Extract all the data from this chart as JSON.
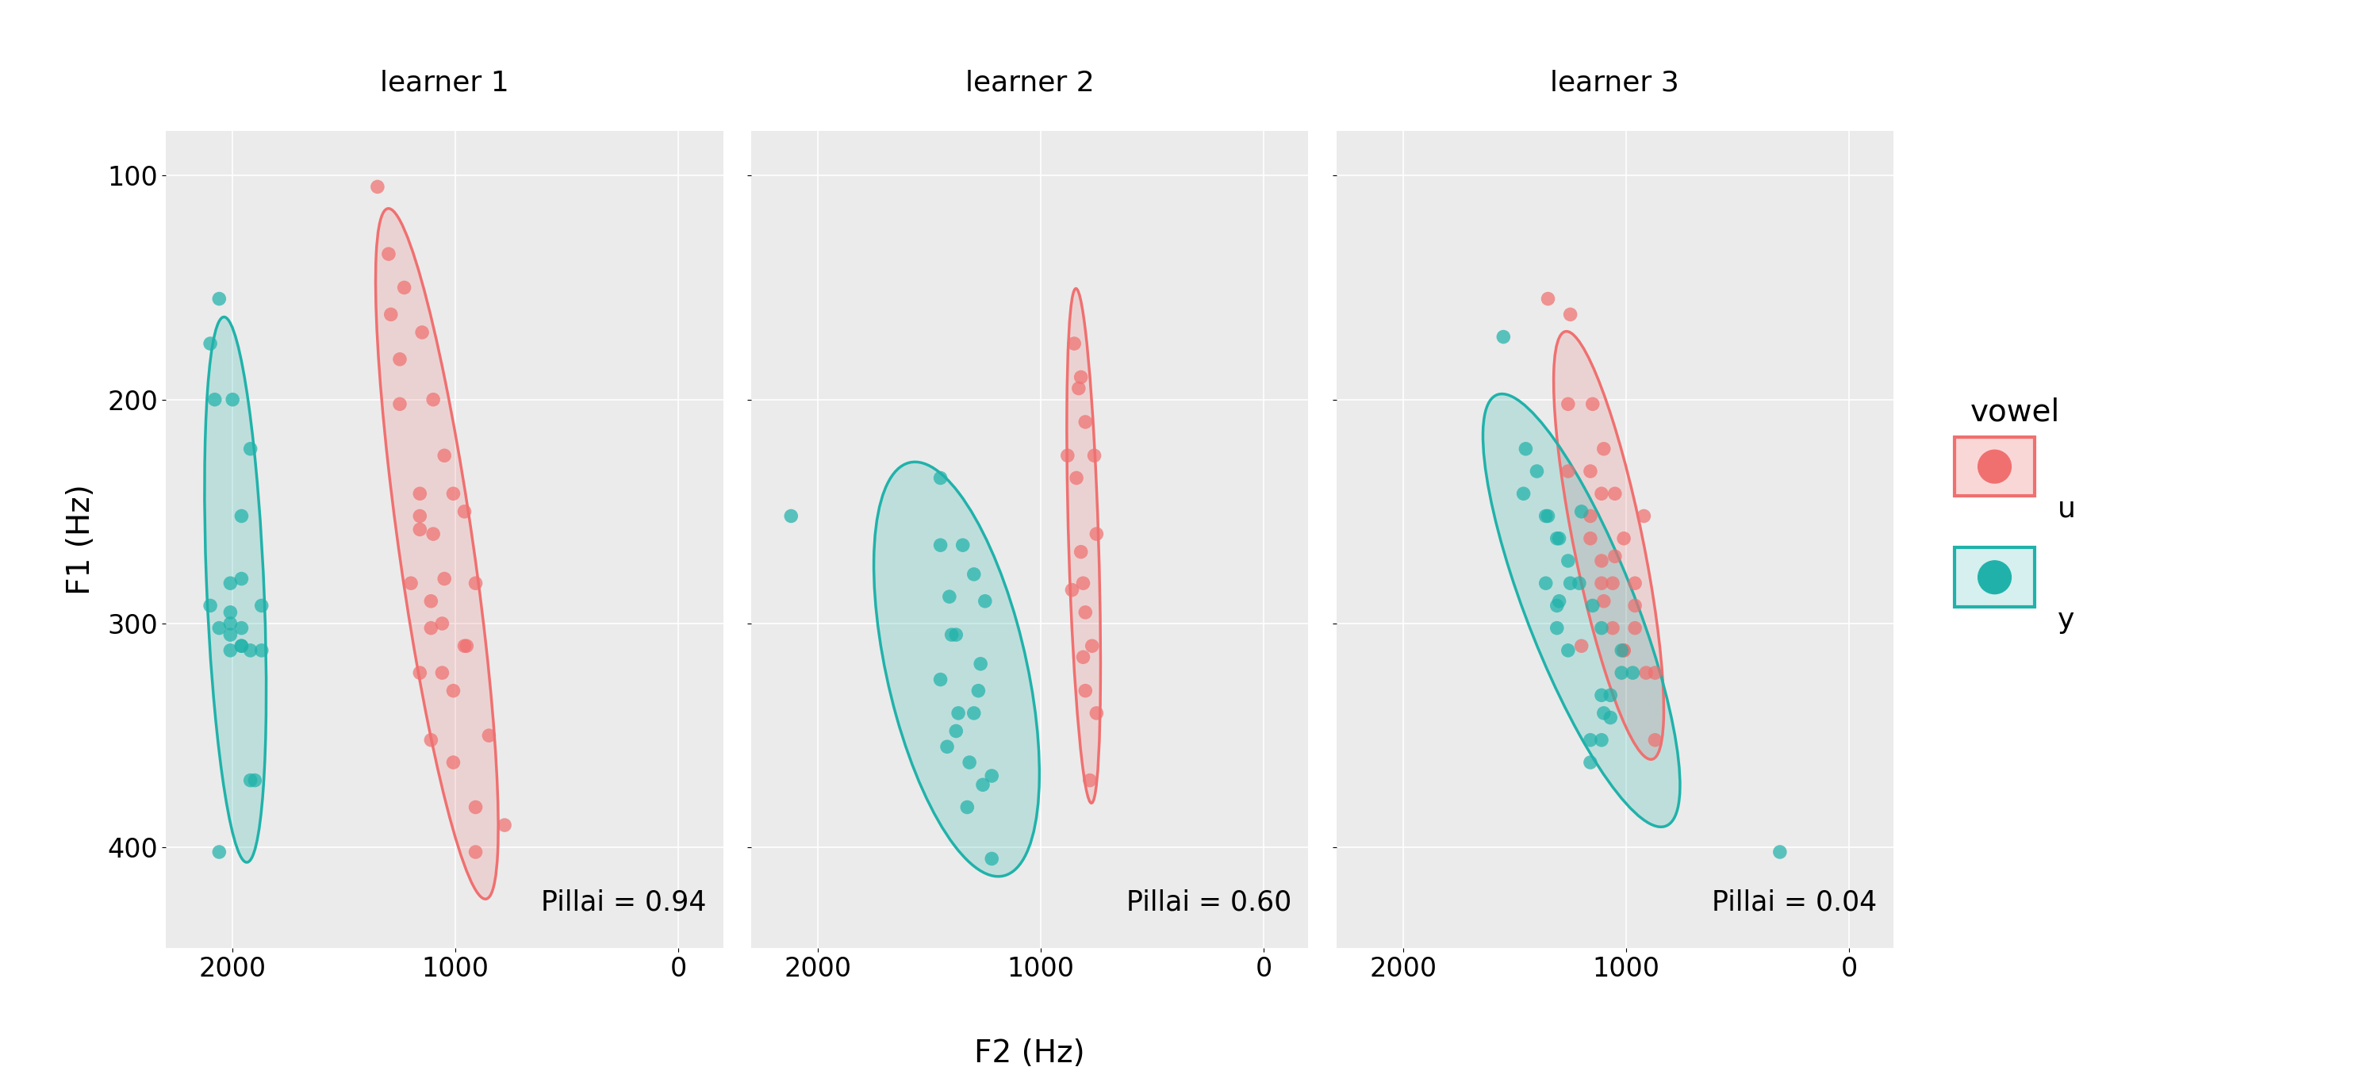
{
  "panels": [
    "learner 1",
    "learner 2",
    "learner 3"
  ],
  "pillai": [
    0.94,
    0.6,
    0.04
  ],
  "color_u": "#F07070",
  "color_y": "#20B2AA",
  "bg_panel": "#EBEBEB",
  "grid_color": "#FFFFFF",
  "header_bg": "#C8C8C8",
  "header_bar": "#333333",
  "xlim": [
    2300,
    -200
  ],
  "ylim": [
    445,
    80
  ],
  "xticks": [
    2000,
    1000,
    0
  ],
  "yticks": [
    100,
    200,
    300,
    400
  ],
  "xlabel": "F2 (Hz)",
  "ylabel": "F1 (Hz)",
  "ellipse_nstd": 2.0,
  "data": {
    "learner 1": {
      "u_f2": [
        1350,
        1230,
        1150,
        1300,
        1100,
        1050,
        960,
        910,
        1010,
        1160,
        1250,
        1110,
        960,
        1060,
        1160,
        1200,
        1010,
        1110,
        910,
        1290,
        1160,
        1060,
        1010,
        1110,
        910,
        1160,
        1250,
        850,
        780,
        950,
        1050,
        1100
      ],
      "u_f1": [
        105,
        150,
        170,
        135,
        200,
        225,
        250,
        282,
        242,
        258,
        182,
        290,
        310,
        300,
        322,
        282,
        330,
        352,
        382,
        162,
        252,
        322,
        362,
        302,
        402,
        242,
        202,
        350,
        390,
        310,
        280,
        260
      ],
      "y_f2": [
        2060,
        2100,
        2080,
        2000,
        1920,
        1960,
        2010,
        1870,
        1960,
        2060,
        1920,
        2010,
        1870,
        2100,
        2010,
        1960,
        2010,
        1920,
        2060,
        1960,
        2010,
        1960,
        1900
      ],
      "y_f1": [
        155,
        175,
        200,
        200,
        222,
        252,
        282,
        292,
        302,
        302,
        312,
        312,
        312,
        292,
        295,
        310,
        305,
        370,
        402,
        310,
        300,
        280,
        370
      ]
    },
    "learner 2": {
      "u_f2": [
        850,
        820,
        800,
        760,
        840,
        880,
        750,
        820,
        810,
        800,
        770,
        810,
        860,
        750,
        830,
        800,
        780
      ],
      "u_f1": [
        175,
        190,
        210,
        225,
        235,
        225,
        260,
        268,
        282,
        295,
        310,
        315,
        285,
        340,
        195,
        330,
        370
      ],
      "y_f2": [
        1450,
        1350,
        1300,
        1250,
        1400,
        1450,
        1270,
        1300,
        1380,
        1420,
        1280,
        1370,
        1220,
        1330,
        1450,
        1380,
        1410,
        1320,
        1260,
        1220,
        2120
      ],
      "y_f1": [
        235,
        265,
        278,
        290,
        305,
        265,
        318,
        340,
        348,
        355,
        330,
        340,
        368,
        382,
        325,
        305,
        288,
        362,
        372,
        405,
        252
      ]
    },
    "learner 3": {
      "u_f2": [
        1350,
        1250,
        1150,
        1100,
        1050,
        1010,
        960,
        920,
        1060,
        1110,
        1160,
        1010,
        960,
        870,
        1260,
        1160,
        1060,
        960,
        910,
        1110,
        1010,
        870,
        1110,
        1160,
        1260,
        1050,
        1100,
        1200
      ],
      "u_f1": [
        155,
        162,
        202,
        222,
        242,
        262,
        282,
        252,
        302,
        272,
        232,
        312,
        292,
        322,
        202,
        252,
        282,
        302,
        322,
        242,
        312,
        352,
        282,
        262,
        232,
        270,
        290,
        310
      ],
      "y_f2": [
        1550,
        1450,
        1400,
        1350,
        1300,
        1250,
        1150,
        1110,
        1020,
        970,
        1070,
        1210,
        1260,
        1310,
        1360,
        1460,
        1070,
        1110,
        1160,
        1260,
        1310,
        1110,
        1020,
        1160,
        1310,
        1360,
        310,
        1200,
        1300,
        1100
      ],
      "y_f1": [
        172,
        222,
        232,
        252,
        262,
        282,
        292,
        302,
        312,
        322,
        332,
        282,
        272,
        262,
        252,
        242,
        342,
        352,
        362,
        312,
        302,
        332,
        322,
        352,
        292,
        282,
        402,
        250,
        290,
        340
      ]
    }
  }
}
